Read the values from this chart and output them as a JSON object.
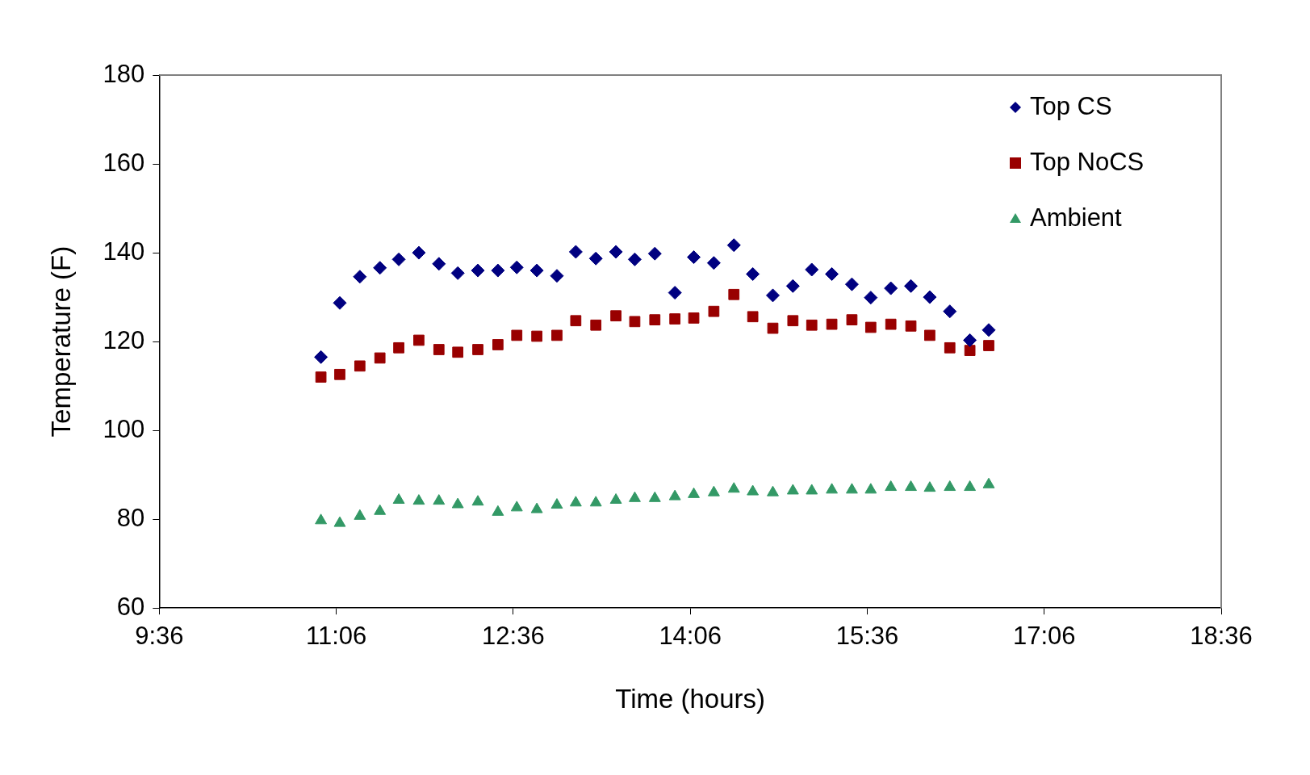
{
  "chart_data": {
    "type": "scatter",
    "xlabel": "Time (hours)",
    "ylabel": "Temperature (F)",
    "x": [
      10.97,
      11.13,
      11.3,
      11.47,
      11.63,
      11.8,
      11.97,
      12.13,
      12.3,
      12.47,
      12.63,
      12.8,
      12.97,
      13.13,
      13.3,
      13.47,
      13.63,
      13.8,
      13.97,
      14.13,
      14.3,
      14.47,
      14.63,
      14.8,
      14.97,
      15.13,
      15.3,
      15.47,
      15.63,
      15.8,
      15.97,
      16.13,
      16.3,
      16.47,
      16.63
    ],
    "series": [
      {
        "name": "Top CS",
        "color": "#000080",
        "marker": "diamond",
        "values": [
          116.5,
          128.7,
          134.6,
          136.6,
          138.5,
          140,
          137.5,
          135.4,
          136,
          136,
          136.7,
          136,
          134.8,
          140.2,
          138.7,
          140.2,
          138.5,
          139.8,
          131,
          139,
          137.7,
          141.7,
          135.2,
          130.4,
          132.5,
          136.2,
          135.2,
          132.9,
          129.9,
          132,
          132.5,
          130,
          126.8,
          120.3,
          122.6
        ]
      },
      {
        "name": "Top NoCS",
        "color": "#990000",
        "marker": "square",
        "values": [
          112,
          112.6,
          114.5,
          116.3,
          118.6,
          120.3,
          118.2,
          117.6,
          118.2,
          119.3,
          121.4,
          121.2,
          121.4,
          124.7,
          123.7,
          125.8,
          124.5,
          124.9,
          125.1,
          125.3,
          126.8,
          130.6,
          125.6,
          123,
          124.7,
          123.7,
          123.9,
          124.9,
          123.2,
          123.9,
          123.5,
          121.4,
          118.6,
          118,
          119.1
        ]
      },
      {
        "name": "Ambient",
        "color": "#339966",
        "marker": "triangle",
        "values": [
          79.7,
          79.1,
          80.7,
          81.8,
          84.3,
          84.1,
          84.1,
          83.3,
          83.9,
          81.6,
          82.6,
          82.2,
          83.2,
          83.7,
          83.7,
          84.3,
          84.7,
          84.7,
          85.1,
          85.6,
          86,
          86.8,
          86.2,
          86,
          86.4,
          86.4,
          86.6,
          86.6,
          86.6,
          87.2,
          87.2,
          87,
          87.2,
          87.2,
          87.8
        ]
      }
    ],
    "xlim": [
      9.6,
      18.6
    ],
    "xticks": [
      {
        "value": 9.6,
        "label": "9:36"
      },
      {
        "value": 11.1,
        "label": "11:06"
      },
      {
        "value": 12.6,
        "label": "12:36"
      },
      {
        "value": 14.1,
        "label": "14:06"
      },
      {
        "value": 15.6,
        "label": "15:36"
      },
      {
        "value": 17.1,
        "label": "17:06"
      },
      {
        "value": 18.6,
        "label": "18:36"
      }
    ],
    "ylim": [
      60,
      180
    ],
    "yticks": [
      60,
      80,
      100,
      120,
      140,
      160,
      180
    ],
    "grid": false,
    "legend": "top right"
  }
}
